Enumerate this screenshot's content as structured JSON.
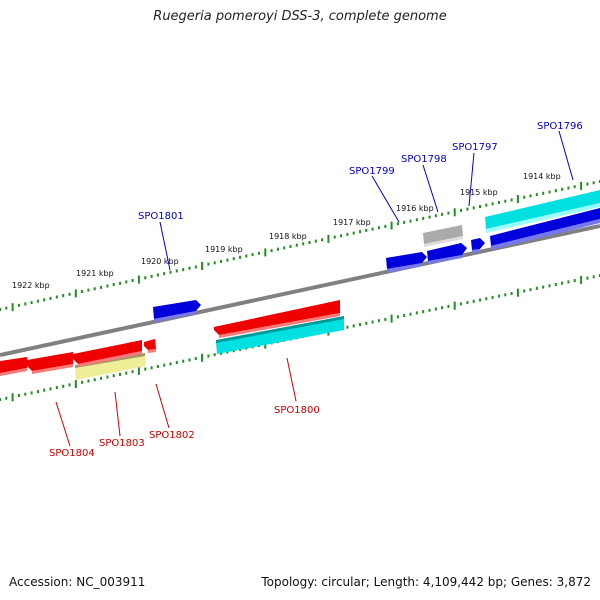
{
  "title": "Ruegeria pomeroyi DSS-3, complete genome",
  "accession_text": "Accession: NC_003911",
  "summary_text": "Topology: circular; Length: 4,109,442 bp; Genes: 3,872",
  "colors": {
    "backbone": "#808080",
    "tick": "#228B22",
    "forward_label": "#0000cc",
    "reverse_label": "#cc0000",
    "gene_blue": "#0000dd",
    "gene_red": "#ee0000",
    "gene_cyan": "#00e0e0",
    "gene_gray": "#aaaaaa",
    "gene_khaki": "#eeee99"
  },
  "scale_labels": [
    "1922 kbp",
    "1921 kbp",
    "1920 kbp",
    "1919 kbp",
    "1918 kbp",
    "1917 kbp",
    "1916 kbp",
    "1915 kbp",
    "1914 kbp"
  ],
  "forward_genes": [
    "SPO1801",
    "SPO1799",
    "SPO1798",
    "SPO1797",
    "SPO1796"
  ],
  "reverse_genes": [
    "SPO1804",
    "SPO1803",
    "SPO1802",
    "SPO1800"
  ]
}
